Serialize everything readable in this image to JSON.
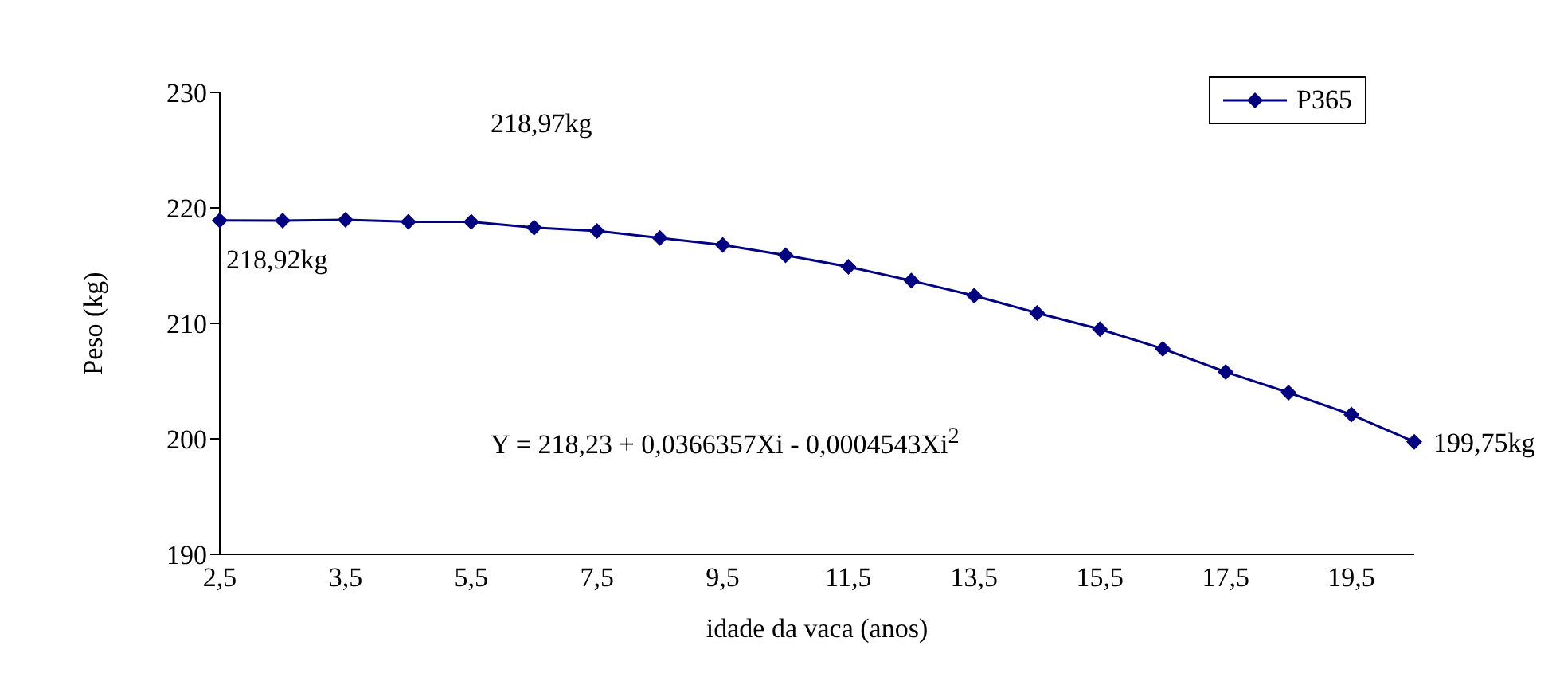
{
  "chart_data": {
    "type": "line",
    "ylabel": "Peso (kg)",
    "xlabel": "idade da vaca (anos)",
    "categories": [
      "2,5",
      null,
      "3,5",
      null,
      "5,5",
      null,
      "7,5",
      null,
      "9,5",
      null,
      "11,5",
      null,
      "13,5",
      null,
      "15,5",
      null,
      "17,5",
      null,
      "19,5",
      null
    ],
    "series": [
      {
        "name": "P365",
        "color": "#000080",
        "values": [
          218.92,
          218.9,
          218.97,
          218.8,
          218.8,
          218.3,
          218.0,
          217.4,
          216.8,
          215.9,
          214.9,
          213.7,
          212.4,
          210.9,
          209.5,
          207.8,
          205.8,
          204.0,
          202.1,
          199.75
        ],
        "value_labels": [
          "218,92kg",
          null,
          null,
          null,
          null,
          null,
          null,
          null,
          null,
          null,
          null,
          null,
          null,
          null,
          null,
          null,
          null,
          null,
          null,
          "199,75kg"
        ]
      }
    ],
    "ylim": [
      190,
      230
    ],
    "yticks": [
      190,
      200,
      210,
      220,
      230
    ],
    "grid": false,
    "legend": "top right",
    "marker": "diamond",
    "line_style": "solid",
    "annotations": [
      "218,97kg",
      "Y = 218,23 + 0,0366357Xi - 0,0004543Xi$^{2}$"
    ]
  }
}
